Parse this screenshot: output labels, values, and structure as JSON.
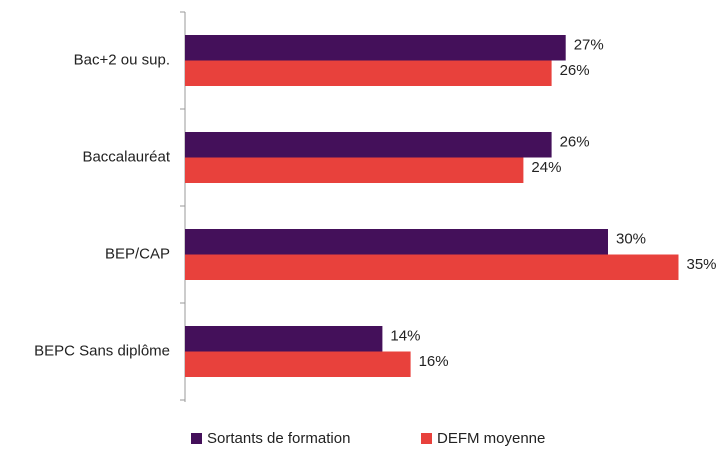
{
  "chart_data": {
    "type": "bar",
    "orientation": "horizontal",
    "categories": [
      "Bac+2 ou sup.",
      "Baccalauréat",
      "BEP/CAP",
      "BEPC Sans diplôme"
    ],
    "series": [
      {
        "name": "Sortants de formation",
        "color": "#44105a",
        "values": [
          27,
          26,
          30,
          14
        ],
        "value_labels": [
          "27%",
          "26%",
          "30%",
          "14%"
        ]
      },
      {
        "name": "DEFM moyenne",
        "color": "#e8413c",
        "values": [
          26,
          24,
          35,
          16
        ],
        "value_labels": [
          "26%",
          "24%",
          "35%",
          "16%"
        ]
      }
    ],
    "legend": "bottom"
  }
}
